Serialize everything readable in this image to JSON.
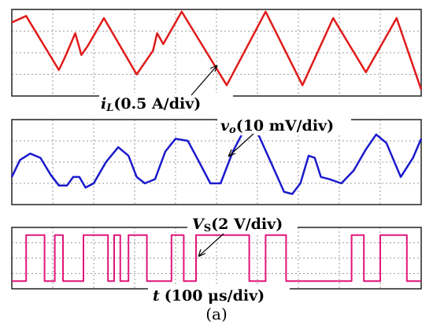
{
  "chart_data": [
    {
      "type": "line",
      "panel": "inductor-current",
      "label": {
        "symbol": "i",
        "subscript": "L",
        "scale": "(0.5 A/div)"
      },
      "color": "#e01b1b",
      "grid": true,
      "divisions": {
        "x": 10,
        "y": 4
      },
      "y_range_div": [
        0,
        4
      ],
      "x": [
        0,
        0.35,
        1.15,
        1.3,
        1.55,
        1.7,
        1.85,
        2.25,
        3.05,
        3.45,
        3.55,
        3.7,
        4.15,
        5.25,
        6.2,
        7.1,
        7.85,
        8.65,
        9.4,
        10
      ],
      "y": [
        3.4,
        3.7,
        1.2,
        1.8,
        2.9,
        1.9,
        2.3,
        3.6,
        1.0,
        2.1,
        2.9,
        2.4,
        3.9,
        0.5,
        3.9,
        0.5,
        3.6,
        1.1,
        3.6,
        0.3
      ]
    },
    {
      "type": "line",
      "panel": "output-voltage-ripple",
      "label": {
        "symbol": "v",
        "subscript": "o",
        "scale": "(10 mV/div)"
      },
      "color": "#1a1acc",
      "grid": true,
      "divisions": {
        "x": 10,
        "y": 4
      },
      "y_range_div": [
        0,
        4
      ],
      "x": [
        0,
        0.2,
        0.45,
        0.7,
        0.95,
        1.15,
        1.35,
        1.5,
        1.65,
        1.8,
        2.0,
        2.3,
        2.6,
        2.85,
        3.05,
        3.25,
        3.5,
        3.75,
        4.0,
        4.3,
        4.55,
        4.85,
        5.1,
        5.4,
        5.7,
        6.0,
        6.35,
        6.65,
        6.85,
        7.05,
        7.25,
        7.4,
        7.55,
        7.75,
        8.05,
        8.35,
        8.65,
        8.9,
        9.15,
        9.5,
        9.8,
        10
      ],
      "y": [
        1.3,
        2.1,
        2.4,
        2.2,
        1.4,
        0.9,
        0.9,
        1.3,
        1.3,
        0.8,
        1.0,
        2.0,
        2.7,
        2.3,
        1.3,
        1.0,
        1.2,
        2.5,
        3.1,
        3.0,
        2.1,
        1.0,
        1.0,
        2.5,
        3.6,
        3.4,
        1.9,
        0.6,
        0.5,
        1.0,
        2.3,
        2.2,
        1.3,
        1.2,
        1.0,
        1.6,
        2.6,
        3.3,
        2.9,
        1.3,
        2.2,
        3.1
      ]
    },
    {
      "type": "line",
      "panel": "switching-signal",
      "label": {
        "symbol": "V",
        "subscript": "S",
        "scale": "(2 V/div)"
      },
      "color": "#e0157a",
      "grid": true,
      "divisions": {
        "x": 10,
        "y": 4
      },
      "y_range_div": [
        0,
        4
      ],
      "step": true,
      "x": [
        0,
        0.35,
        0.35,
        0.8,
        0.8,
        1.05,
        1.05,
        1.25,
        1.25,
        1.75,
        1.75,
        2.35,
        2.35,
        2.5,
        2.5,
        2.65,
        2.65,
        2.85,
        2.85,
        3.3,
        3.3,
        3.9,
        3.9,
        4.2,
        4.2,
        4.5,
        4.5,
        5.8,
        5.8,
        6.2,
        6.2,
        6.7,
        6.7,
        8.3,
        8.3,
        8.6,
        8.6,
        9.0,
        9.0,
        9.65,
        9.65,
        10
      ],
      "y": [
        0.5,
        0.5,
        3.5,
        3.5,
        0.5,
        0.5,
        3.5,
        3.5,
        0.5,
        0.5,
        3.5,
        3.5,
        0.5,
        0.5,
        3.5,
        3.5,
        0.5,
        0.5,
        3.5,
        3.5,
        0.5,
        0.5,
        3.5,
        3.5,
        0.5,
        0.5,
        3.5,
        3.5,
        0.5,
        0.5,
        3.5,
        3.5,
        0.5,
        0.5,
        3.5,
        3.5,
        0.5,
        0.5,
        3.5,
        3.5,
        0.5,
        0.5
      ]
    }
  ],
  "x_axis": {
    "symbol": "t",
    "scale": "(100 μs/div)"
  },
  "caption": "(a)"
}
